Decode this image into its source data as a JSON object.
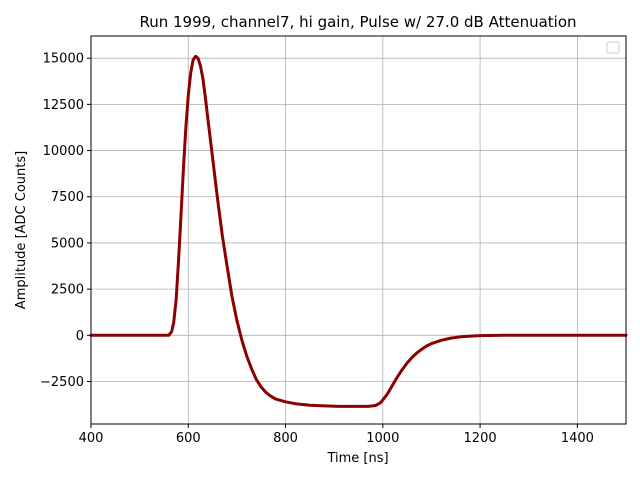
{
  "chart_data": {
    "type": "line",
    "title": "Run 1999, channel7, hi gain, Pulse w/ 27.0 dB Attenuation",
    "xlabel": "Time [ns]",
    "ylabel": "Amplitude [ADC Counts]",
    "xlim": [
      400,
      1500
    ],
    "ylim": [
      -4800,
      16200
    ],
    "xticks": [
      400,
      600,
      800,
      1000,
      1200,
      1400
    ],
    "xtick_labels": [
      "400",
      "600",
      "800",
      "1000",
      "1200",
      "1400"
    ],
    "yticks": [
      -2500,
      0,
      2500,
      5000,
      7500,
      10000,
      12500,
      15000
    ],
    "ytick_labels": [
      "−2500",
      "0",
      "2500",
      "5000",
      "7500",
      "10000",
      "12500",
      "15000"
    ],
    "grid": true,
    "legend": "top-right (empty)",
    "series_color": "#8b0000",
    "series": [
      {
        "x": [
          400,
          500,
          560,
          566,
          570,
          575,
          580,
          585,
          590,
          595,
          600,
          605,
          610,
          615,
          620,
          625,
          630,
          635,
          640,
          650,
          660,
          670,
          680,
          690,
          700,
          710,
          720,
          730,
          740,
          750,
          760,
          770,
          780,
          800,
          820,
          850,
          880,
          910,
          940,
          970,
          985,
          995,
          1000,
          1010,
          1020,
          1030,
          1040,
          1050,
          1060,
          1070,
          1080,
          1090,
          1100,
          1120,
          1140,
          1160,
          1180,
          1200,
          1250,
          1300,
          1400,
          1500
        ],
        "y": [
          0,
          0,
          0,
          200,
          700,
          1900,
          4000,
          6500,
          9000,
          11200,
          13000,
          14200,
          14900,
          15100,
          15000,
          14600,
          13900,
          12900,
          11800,
          9600,
          7400,
          5400,
          3700,
          2100,
          800,
          -250,
          -1100,
          -1800,
          -2400,
          -2800,
          -3100,
          -3300,
          -3450,
          -3600,
          -3700,
          -3780,
          -3820,
          -3850,
          -3850,
          -3850,
          -3800,
          -3650,
          -3500,
          -3150,
          -2700,
          -2250,
          -1850,
          -1500,
          -1200,
          -950,
          -750,
          -580,
          -450,
          -270,
          -150,
          -80,
          -40,
          -15,
          0,
          0,
          0,
          0
        ]
      }
    ]
  }
}
